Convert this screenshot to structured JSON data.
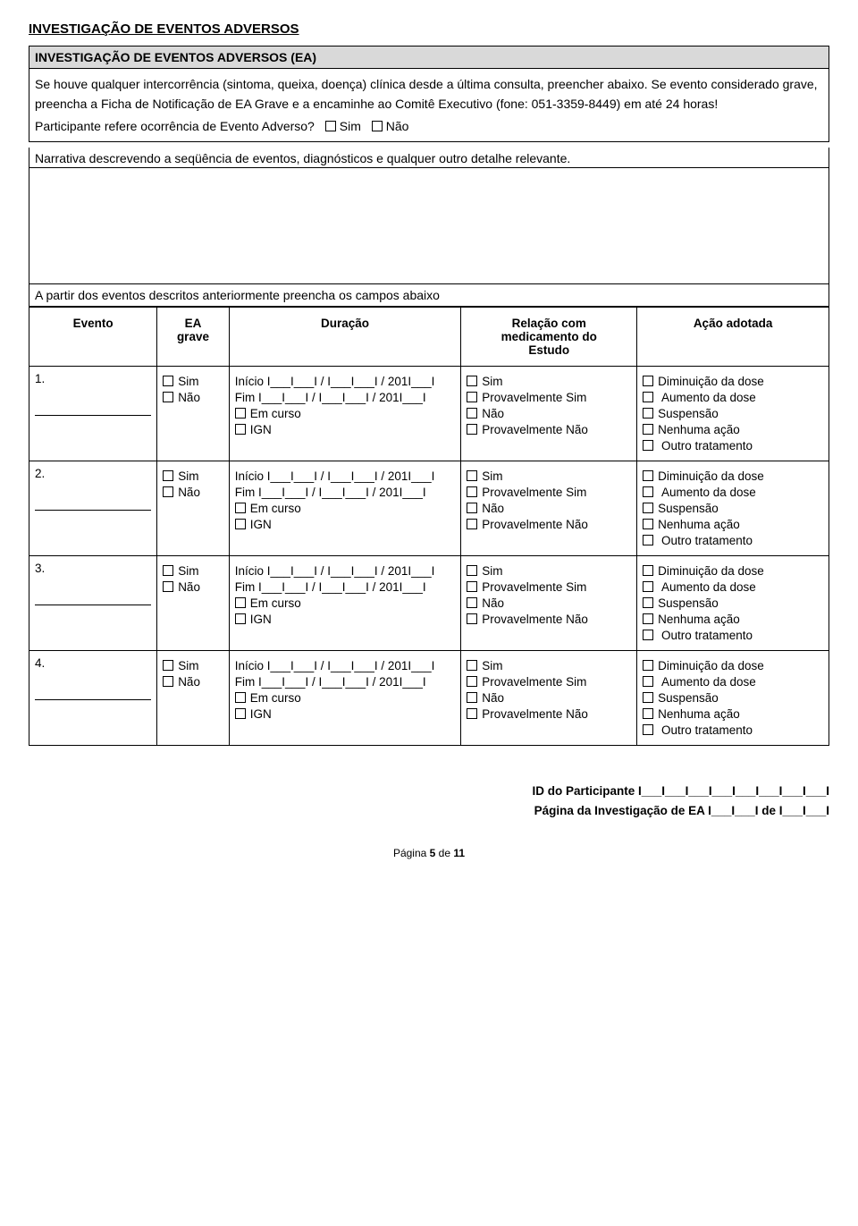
{
  "page_title": "INVESTIGAÇÃO DE EVENTOS ADVERSOS",
  "section_header": "INVESTIGAÇÃO DE EVENTOS ADVERSOS (EA)",
  "intro_text": "Se houve qualquer intercorrência (sintoma, queixa, doença) clínica desde a última consulta, preencher abaixo. Se evento considerado grave, preencha a Ficha de Notificação de EA Grave e a encaminhe ao Comitê Executivo (fone: 051-3359-8449) em até 24 horas!",
  "q_adverse": "Participante refere ocorrência de Evento Adverso?",
  "opt_sim": "Sim",
  "opt_nao": "Não",
  "narrative_label": "Narrativa descrevendo a seqüência de eventos, diagnósticos e qualquer outro detalhe relevante.",
  "table_caption": "A partir dos eventos descritos anteriormente preencha os campos abaixo",
  "headers": {
    "evento": "Evento",
    "ea_grave_l1": "EA",
    "ea_grave_l2": "grave",
    "duracao": "Duração",
    "relacao_l1": "Relação com",
    "relacao_l2": "medicamento do",
    "relacao_l3": "Estudo",
    "acao": "Ação adotada"
  },
  "dur": {
    "inicio": "Início I___I___I / I___I___I / 201I___I",
    "fim": "Fim    I___I___I / I___I___I / 201I___I",
    "em_curso": "Em curso",
    "ign": "IGN"
  },
  "rel": {
    "sim": "Sim",
    "prov_sim": "Provavelmente Sim",
    "nao": "Não",
    "prov_nao": "Provavelmente Não"
  },
  "acao": {
    "dim": "Diminuição da dose",
    "aum": "Aumento da dose",
    "susp": "Suspensão",
    "nenh": "Nenhuma ação",
    "outro": "Outro tratamento"
  },
  "rows": [
    "1.",
    "2.",
    "3.",
    "4."
  ],
  "footer": {
    "id_part": "ID do Participante I___I___I___I___I___I___I___I___I",
    "pag_invest": "Página da Investigação de EA I___I___I de I___I___I"
  },
  "page_footer": "Página 5 de 11"
}
